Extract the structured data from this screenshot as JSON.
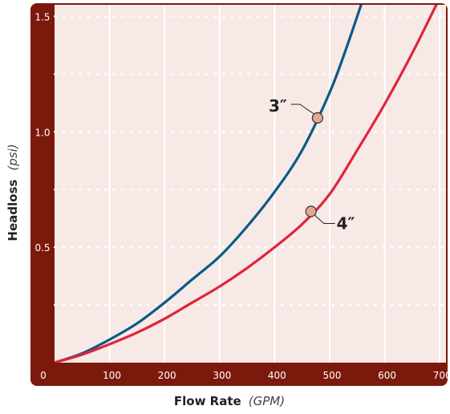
{
  "chart_data": {
    "type": "line",
    "xlabel": "Flow Rate",
    "xlabel_unit": "(GPM)",
    "ylabel": "Headloss",
    "ylabel_unit": "(psi)",
    "xlim": [
      0,
      710
    ],
    "ylim": [
      0,
      1.55
    ],
    "x_ticks": [
      0,
      100,
      200,
      300,
      400,
      500,
      600,
      700
    ],
    "y_ticks": [
      0.5,
      1.0,
      1.5
    ],
    "x_tick_labels": [
      "0",
      "100",
      "200",
      "300",
      "400",
      "500",
      "600",
      "700"
    ],
    "y_tick_labels": [
      "0.5",
      "1.0",
      "1.5"
    ],
    "grid": true,
    "series": [
      {
        "name": "3″",
        "color": "#0b5a86",
        "x": [
          0,
          50,
          100,
          150,
          200,
          250,
          300,
          350,
          400,
          450,
          500,
          530,
          560
        ],
        "y": [
          0,
          0.04,
          0.1,
          0.17,
          0.26,
          0.36,
          0.46,
          0.59,
          0.74,
          0.92,
          1.17,
          1.36,
          1.57
        ],
        "marker": {
          "x": 478,
          "y": 1.06
        }
      },
      {
        "name": "4″",
        "color": "#e0233f",
        "x": [
          0,
          50,
          100,
          150,
          200,
          250,
          300,
          350,
          400,
          450,
          500,
          550,
          600,
          650,
          700
        ],
        "y": [
          0,
          0.035,
          0.08,
          0.13,
          0.19,
          0.26,
          0.33,
          0.41,
          0.5,
          0.6,
          0.73,
          0.92,
          1.12,
          1.34,
          1.58
        ],
        "marker": {
          "x": 466,
          "y": 0.655
        }
      }
    ],
    "colors": {
      "frame": "#7b1a0c",
      "plot_bg": "#f7e9e6",
      "grid": "#ffffff",
      "marker_fill": "#e3a794"
    }
  }
}
